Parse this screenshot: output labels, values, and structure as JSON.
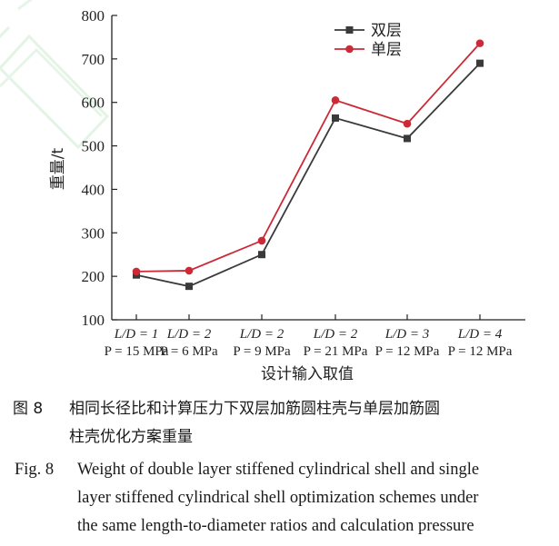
{
  "chart_data": {
    "type": "line",
    "xlabel": "设计输入取值",
    "ylabel": "重量/t",
    "ylim": [
      100,
      800
    ],
    "yticks": [
      100,
      200,
      300,
      400,
      500,
      600,
      700,
      800
    ],
    "grid": false,
    "legend_position": "top-right",
    "categories": [
      {
        "line1": "L/D = 1",
        "line2": "P = 15 MPa"
      },
      {
        "line1": "L/D = 2",
        "line2": "P = 6 MPa"
      },
      {
        "line1": "L/D = 2",
        "line2": "P = 9 MPa"
      },
      {
        "line1": "L/D = 2",
        "line2": "P = 21 MPa"
      },
      {
        "line1": "L/D = 3",
        "line2": "P = 12 MPa"
      },
      {
        "line1": "L/D = 4",
        "line2": "P = 12 MPa"
      }
    ],
    "series": [
      {
        "name": "双层",
        "color": "#3a3a3a",
        "marker": "square",
        "values": [
          203,
          177,
          250,
          564,
          517,
          690
        ]
      },
      {
        "name": "单层",
        "color": "#cc2a36",
        "marker": "circle",
        "values": [
          211,
          213,
          282,
          605,
          551,
          736
        ]
      }
    ]
  },
  "caption": {
    "zh_number": "图 8",
    "zh_lines": [
      "相同长径比和计算压力下双层加筋圆柱壳与单层加筋圆",
      "柱壳优化方案重量"
    ],
    "en_number": "Fig. 8",
    "en_lines": [
      "Weight of double layer stiffened cylindrical shell and single",
      "layer stiffened cylindrical shell optimization schemes under",
      "the same length-to-diameter ratios and calculation pressure"
    ]
  }
}
